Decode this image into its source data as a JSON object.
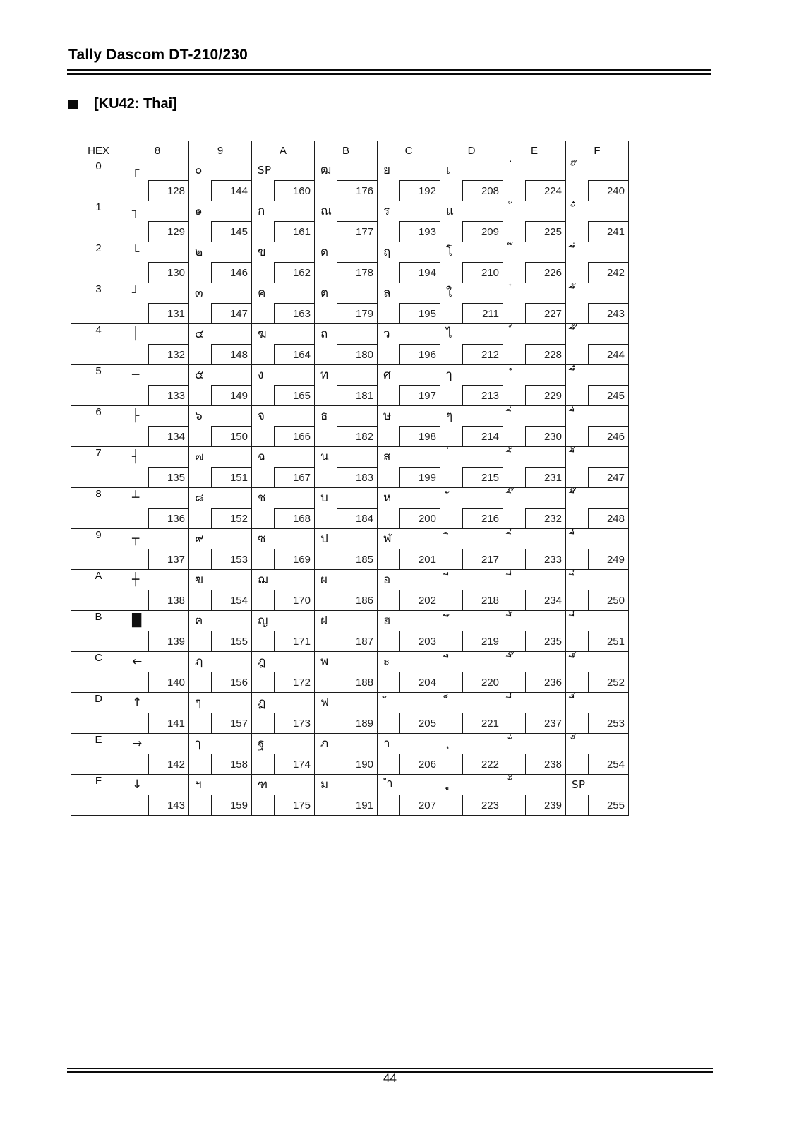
{
  "page": {
    "title": "Tally Dascom DT-210/230",
    "section_title": "[KU42: Thai]",
    "page_number": "44"
  },
  "table": {
    "corner_label": "HEX",
    "column_headers": [
      "8",
      "9",
      "A",
      "B",
      "C",
      "D",
      "E",
      "F"
    ],
    "rows": [
      {
        "hex": "0",
        "cells": [
          {
            "ch": "┌",
            "code": "128"
          },
          {
            "ch": "๐",
            "code": "144"
          },
          {
            "ch": "SP",
            "code": "160"
          },
          {
            "ch": "ฒ",
            "code": "176"
          },
          {
            "ch": "ย",
            "code": "192"
          },
          {
            "ch": "เ",
            "code": "208"
          },
          {
            "ch": "่",
            "code": "224"
          },
          {
            "ch": "ั๊",
            "code": "240"
          }
        ]
      },
      {
        "hex": "1",
        "cells": [
          {
            "ch": "┐",
            "code": "129"
          },
          {
            "ch": "๑",
            "code": "145"
          },
          {
            "ch": "ก",
            "code": "161"
          },
          {
            "ch": "ณ",
            "code": "177"
          },
          {
            "ch": "ร",
            "code": "193"
          },
          {
            "ch": "แ",
            "code": "209"
          },
          {
            "ch": "้",
            "code": "225"
          },
          {
            "ch": "ั๋",
            "code": "241"
          }
        ]
      },
      {
        "hex": "2",
        "cells": [
          {
            "ch": "└",
            "code": "130"
          },
          {
            "ch": "๒",
            "code": "146"
          },
          {
            "ch": "ข",
            "code": "162"
          },
          {
            "ch": "ด",
            "code": "178"
          },
          {
            "ch": "ฤ",
            "code": "194"
          },
          {
            "ch": "โ",
            "code": "210"
          },
          {
            "ch": "๊",
            "code": "226"
          },
          {
            "ch": "ึ่",
            "code": "242"
          }
        ]
      },
      {
        "hex": "3",
        "cells": [
          {
            "ch": "┘",
            "code": "131"
          },
          {
            "ch": "๓",
            "code": "147"
          },
          {
            "ch": "ค",
            "code": "163"
          },
          {
            "ch": "ต",
            "code": "179"
          },
          {
            "ch": "ล",
            "code": "195"
          },
          {
            "ch": "ใ",
            "code": "211"
          },
          {
            "ch": "๋",
            "code": "227"
          },
          {
            "ch": "ึ้",
            "code": "243"
          }
        ]
      },
      {
        "hex": "4",
        "cells": [
          {
            "ch": "│",
            "code": "132"
          },
          {
            "ch": "๔",
            "code": "148"
          },
          {
            "ch": "ฆ",
            "code": "164"
          },
          {
            "ch": "ถ",
            "code": "180"
          },
          {
            "ch": "ว",
            "code": "196"
          },
          {
            "ch": "ไ",
            "code": "212"
          },
          {
            "ch": "์",
            "code": "228"
          },
          {
            "ch": "ึ๊",
            "code": "244"
          }
        ]
      },
      {
        "hex": "5",
        "cells": [
          {
            "ch": "─",
            "code": "133"
          },
          {
            "ch": "๕",
            "code": "149"
          },
          {
            "ch": "ง",
            "code": "165"
          },
          {
            "ch": "ท",
            "code": "181"
          },
          {
            "ch": "ศ",
            "code": "197"
          },
          {
            "ch": "ๅ",
            "code": "213"
          },
          {
            "ch": "ํ",
            "code": "229"
          },
          {
            "ch": "ึ๋",
            "code": "245"
          }
        ]
      },
      {
        "hex": "6",
        "cells": [
          {
            "ch": "├",
            "code": "134"
          },
          {
            "ch": "๖",
            "code": "150"
          },
          {
            "ch": "จ",
            "code": "166"
          },
          {
            "ch": "ธ",
            "code": "182"
          },
          {
            "ch": "ษ",
            "code": "198"
          },
          {
            "ch": "ๆ",
            "code": "214"
          },
          {
            "ch": "ิ่",
            "code": "230"
          },
          {
            "ch": "ื่",
            "code": "246"
          }
        ]
      },
      {
        "hex": "7",
        "cells": [
          {
            "ch": "┤",
            "code": "135"
          },
          {
            "ch": "๗",
            "code": "151"
          },
          {
            "ch": "ฉ",
            "code": "167"
          },
          {
            "ch": "น",
            "code": "183"
          },
          {
            "ch": "ส",
            "code": "199"
          },
          {
            "ch": "่",
            "code": "215"
          },
          {
            "ch": "ิ้",
            "code": "231"
          },
          {
            "ch": "ื้",
            "code": "247"
          }
        ]
      },
      {
        "hex": "8",
        "cells": [
          {
            "ch": "┴",
            "code": "136"
          },
          {
            "ch": "๘",
            "code": "152"
          },
          {
            "ch": "ช",
            "code": "168"
          },
          {
            "ch": "บ",
            "code": "184"
          },
          {
            "ch": "ห",
            "code": "200"
          },
          {
            "ch": "ั",
            "code": "216"
          },
          {
            "ch": "ิ๊",
            "code": "232"
          },
          {
            "ch": "ื๊",
            "code": "248"
          }
        ]
      },
      {
        "hex": "9",
        "cells": [
          {
            "ch": "┬",
            "code": "137"
          },
          {
            "ch": "๙",
            "code": "153"
          },
          {
            "ch": "ซ",
            "code": "169"
          },
          {
            "ch": "ป",
            "code": "185"
          },
          {
            "ch": "ฬ",
            "code": "201"
          },
          {
            "ch": "ิ",
            "code": "217"
          },
          {
            "ch": "ิ๋",
            "code": "233"
          },
          {
            "ch": "ื๋",
            "code": "249"
          }
        ]
      },
      {
        "hex": "A",
        "cells": [
          {
            "ch": "┼",
            "code": "138"
          },
          {
            "ch": "ฃ",
            "code": "154"
          },
          {
            "ch": "ฌ",
            "code": "170"
          },
          {
            "ch": "ผ",
            "code": "186"
          },
          {
            "ch": "อ",
            "code": "202"
          },
          {
            "ch": "ี",
            "code": "218"
          },
          {
            "ch": "ี่",
            "code": "234"
          },
          {
            "ch": "ิ๋",
            "code": "250"
          }
        ]
      },
      {
        "hex": "B",
        "cells": [
          {
            "ch": "█",
            "code": "139"
          },
          {
            "ch": "ฅ",
            "code": "155"
          },
          {
            "ch": "ญ",
            "code": "171"
          },
          {
            "ch": "ฝ",
            "code": "187"
          },
          {
            "ch": "ฮ",
            "code": "203"
          },
          {
            "ch": "ึ",
            "code": "219"
          },
          {
            "ch": "ี้",
            "code": "235"
          },
          {
            "ch": "ี๋",
            "code": "251"
          }
        ]
      },
      {
        "hex": "C",
        "cells": [
          {
            "ch": "←",
            "code": "140"
          },
          {
            "ch": "ฦ",
            "code": "156"
          },
          {
            "ch": "ฎ",
            "code": "172"
          },
          {
            "ch": "พ",
            "code": "188"
          },
          {
            "ch": "ะ",
            "code": "204"
          },
          {
            "ch": "ื",
            "code": "220"
          },
          {
            "ch": "ี๊",
            "code": "236"
          },
          {
            "ch": "ึ์",
            "code": "252"
          }
        ]
      },
      {
        "hex": "D",
        "cells": [
          {
            "ch": "↑",
            "code": "141"
          },
          {
            "ch": "ๆ",
            "code": "157"
          },
          {
            "ch": "ฏ",
            "code": "173"
          },
          {
            "ch": "ฟ",
            "code": "189"
          },
          {
            "ch": "ั",
            "code": "205"
          },
          {
            "ch": "็",
            "code": "221"
          },
          {
            "ch": "ี๋",
            "code": "237"
          },
          {
            "ch": "ื์",
            "code": "253"
          }
        ]
      },
      {
        "hex": "E",
        "cells": [
          {
            "ch": "→",
            "code": "142"
          },
          {
            "ch": "ๅ",
            "code": "158"
          },
          {
            "ch": "ฐ",
            "code": "174"
          },
          {
            "ch": "ภ",
            "code": "190"
          },
          {
            "ch": "า",
            "code": "206"
          },
          {
            "ch": "ุ",
            "code": "222"
          },
          {
            "ch": "ั่",
            "code": "238"
          },
          {
            "ch": "ั์",
            "code": "254"
          }
        ]
      },
      {
        "hex": "F",
        "cells": [
          {
            "ch": "↓",
            "code": "143"
          },
          {
            "ch": "ฯ",
            "code": "159"
          },
          {
            "ch": "ฑ",
            "code": "175"
          },
          {
            "ch": "ม",
            "code": "191"
          },
          {
            "ch": "ำ",
            "code": "207"
          },
          {
            "ch": "ู",
            "code": "223"
          },
          {
            "ch": "ั้",
            "code": "239"
          },
          {
            "ch": "SP",
            "code": "255"
          }
        ]
      }
    ]
  }
}
